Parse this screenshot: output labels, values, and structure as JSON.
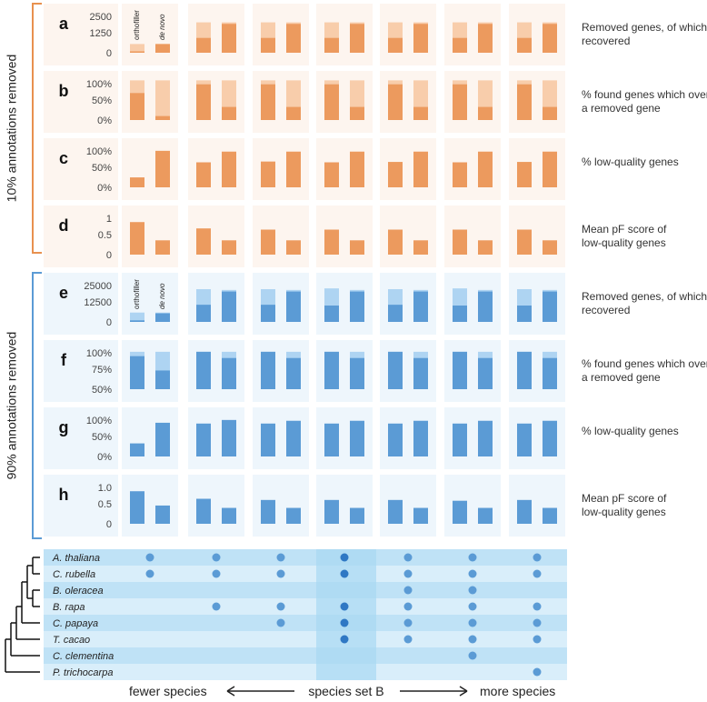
{
  "groups": [
    {
      "label": "10% annotations removed",
      "color": "#e8914f"
    },
    {
      "label": "90% annotations removed",
      "color": "#5b9bd5"
    }
  ],
  "column_headers": [
    "orthofiller",
    "de novo"
  ],
  "colors": {
    "orange_dark": "#ec9a5e",
    "orange_light": "#f8cdab",
    "orange_bg": "#fdf5ef",
    "blue_dark": "#5b9bd5",
    "blue_light": "#aed4f2",
    "blue_bg": "#eef6fc",
    "table_a": "#bfe2f6",
    "table_b": "#d9eefa",
    "table_c": "#a8d8f2",
    "dot": "#5b9bd5",
    "dot_dark": "#2f78c4"
  },
  "chart_data": [
    {
      "panel": "a",
      "group": 0,
      "type": "bar",
      "title": "Removed genes,  of which recovered",
      "ticks": [
        "2500",
        "1250",
        "0"
      ],
      "ylim": [
        0,
        2800
      ],
      "series": [
        {
          "name": "total",
          "values": [
            [
              560,
              560
            ],
            [
              1950,
              1950
            ],
            [
              1950,
              1950
            ],
            [
              1950,
              1950
            ],
            [
              1950,
              1950
            ],
            [
              1950,
              1950
            ],
            [
              1950,
              1950
            ]
          ]
        },
        {
          "name": "recovered",
          "values": [
            [
              90,
              560
            ],
            [
              950,
              1850
            ],
            [
              950,
              1850
            ],
            [
              950,
              1850
            ],
            [
              950,
              1850
            ],
            [
              950,
              1850
            ],
            [
              950,
              1850
            ]
          ]
        }
      ]
    },
    {
      "panel": "b",
      "group": 0,
      "type": "bar",
      "title": "% found genes which overlap a removed gene",
      "ticks": [
        "100%",
        "50%",
        "0%"
      ],
      "ylim": [
        0,
        110
      ],
      "series": [
        {
          "name": "total",
          "values": [
            [
              100,
              100
            ],
            [
              100,
              100
            ],
            [
              100,
              100
            ],
            [
              100,
              100
            ],
            [
              100,
              100
            ],
            [
              100,
              100
            ],
            [
              100,
              100
            ]
          ]
        },
        {
          "name": "value",
          "values": [
            [
              68,
              10
            ],
            [
              90,
              33
            ],
            [
              90,
              33
            ],
            [
              90,
              33
            ],
            [
              90,
              33
            ],
            [
              90,
              33
            ],
            [
              90,
              33
            ]
          ]
        }
      ]
    },
    {
      "panel": "c",
      "group": 0,
      "type": "bar",
      "title": "% low-quality genes",
      "ticks": [
        "100%",
        "50%",
        "0%"
      ],
      "ylim": [
        0,
        110
      ],
      "series": [
        {
          "name": "value",
          "values": [
            [
              25,
              92
            ],
            [
              63,
              90
            ],
            [
              65,
              90
            ],
            [
              63,
              90
            ],
            [
              64,
              90
            ],
            [
              63,
              90
            ],
            [
              64,
              90
            ]
          ]
        }
      ]
    },
    {
      "panel": "d",
      "group": 0,
      "type": "bar",
      "title": "Mean pF score of low-quality genes",
      "ticks": [
        "1",
        "0.5",
        "0"
      ],
      "ylim": [
        0,
        1.1
      ],
      "series": [
        {
          "name": "value",
          "values": [
            [
              0.82,
              0.36
            ],
            [
              0.66,
              0.36
            ],
            [
              0.63,
              0.36
            ],
            [
              0.63,
              0.36
            ],
            [
              0.63,
              0.36
            ],
            [
              0.63,
              0.36
            ],
            [
              0.63,
              0.36
            ]
          ]
        }
      ]
    },
    {
      "panel": "e",
      "group": 1,
      "type": "bar",
      "title": "Removed genes,  of which recovered",
      "ticks": [
        "25000",
        "12500",
        "0"
      ],
      "ylim": [
        0,
        28000
      ],
      "series": [
        {
          "name": "total",
          "values": [
            [
              6000,
              6000
            ],
            [
              21000,
              20500
            ],
            [
              21000,
              20500
            ],
            [
              21500,
              20500
            ],
            [
              21000,
              20500
            ],
            [
              21500,
              20500
            ],
            [
              21000,
              20500
            ]
          ]
        },
        {
          "name": "recovered",
          "values": [
            [
              1000,
              5500
            ],
            [
              11000,
              19500
            ],
            [
              11000,
              19500
            ],
            [
              10500,
              19500
            ],
            [
              11000,
              19500
            ],
            [
              10500,
              19500
            ],
            [
              10500,
              19500
            ]
          ]
        }
      ]
    },
    {
      "panel": "f",
      "group": 1,
      "type": "bar",
      "title": "% found genes which overlap a removed gene",
      "ticks": [
        "100%",
        "75%",
        "50%"
      ],
      "ylim": [
        40,
        110
      ],
      "series": [
        {
          "name": "total",
          "values": [
            [
              100,
              100
            ],
            [
              100,
              100
            ],
            [
              100,
              100
            ],
            [
              100,
              100
            ],
            [
              100,
              100
            ],
            [
              100,
              100
            ],
            [
              100,
              100
            ]
          ]
        },
        {
          "name": "value",
          "values": [
            [
              93,
              70
            ],
            [
              100,
              90
            ],
            [
              100,
              90
            ],
            [
              100,
              90
            ],
            [
              100,
              90
            ],
            [
              100,
              90
            ],
            [
              100,
              90
            ]
          ]
        }
      ]
    },
    {
      "panel": "g",
      "group": 1,
      "type": "bar",
      "title": "% low-quality genes",
      "ticks": [
        "100%",
        "50%",
        "0%"
      ],
      "ylim": [
        0,
        110
      ],
      "series": [
        {
          "name": "value",
          "values": [
            [
              33,
              85
            ],
            [
              83,
              92
            ],
            [
              83,
              90
            ],
            [
              83,
              90
            ],
            [
              83,
              90
            ],
            [
              83,
              90
            ],
            [
              83,
              90
            ]
          ]
        }
      ]
    },
    {
      "panel": "h",
      "group": 1,
      "type": "bar",
      "title": "Mean pF score of low-quality genes",
      "ticks": [
        "1.0",
        "0.5",
        "0"
      ],
      "ylim": [
        0,
        1.1
      ],
      "series": [
        {
          "name": "value",
          "values": [
            [
              0.82,
              0.46
            ],
            [
              0.63,
              0.4
            ],
            [
              0.6,
              0.4
            ],
            [
              0.6,
              0.4
            ],
            [
              0.6,
              0.4
            ],
            [
              0.58,
              0.4
            ],
            [
              0.6,
              0.4
            ]
          ]
        }
      ]
    }
  ],
  "species_table": {
    "species": [
      "A. thaliana",
      "C. rubella",
      "B. oleracea",
      "B. rapa",
      "C. papaya",
      "T. cacao",
      "C. clementina",
      "P. trichocarpa"
    ],
    "highlight_column": 3,
    "membership": [
      [
        0,
        1,
        2,
        3,
        4,
        5,
        6
      ],
      [
        0,
        1,
        2,
        3,
        4,
        5,
        6
      ],
      [
        4,
        5
      ],
      [
        1,
        2,
        3,
        4,
        5,
        6
      ],
      [
        2,
        3,
        4,
        5,
        6
      ],
      [
        3,
        4,
        5,
        6
      ],
      [
        5
      ],
      [
        6
      ]
    ]
  },
  "footer": {
    "left": "fewer species",
    "center": "species set B",
    "right": "more species"
  }
}
